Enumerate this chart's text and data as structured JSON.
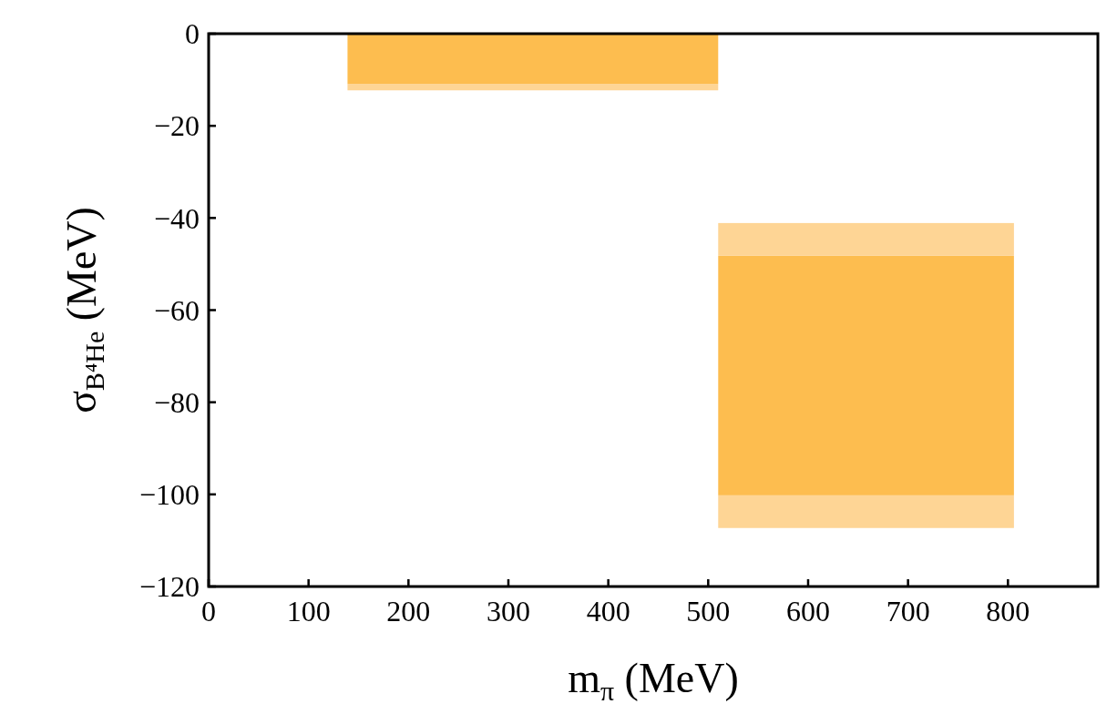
{
  "chart_data": {
    "type": "histogram",
    "xlabel": "m$_{π}$ (MeV)",
    "ylabel": "σ$_{B⁴He}$ (MeV)",
    "xlim": [
      0,
      890
    ],
    "xticks": [
      0,
      100,
      200,
      300,
      400,
      500,
      600,
      700,
      800
    ],
    "ylim": [
      -120,
      0
    ],
    "yticks": [
      -120,
      -100,
      -80,
      -60,
      -40,
      -20,
      0
    ],
    "grid": false,
    "bins": [
      139,
      510,
      806
    ],
    "series": [
      {
        "color": "#fed595",
        "base": [
          -12.3,
          -107.3
        ],
        "values": [
          1.4,
          7.1
        ]
      },
      {
        "color": "#fdbd4f",
        "base": [
          -10.9,
          -100.2
        ],
        "values": [
          10.9,
          52.0
        ]
      },
      {
        "color": "#fed595",
        "base": [
          null,
          -48.2
        ],
        "values": [
          null,
          7.1
        ]
      }
    ]
  }
}
